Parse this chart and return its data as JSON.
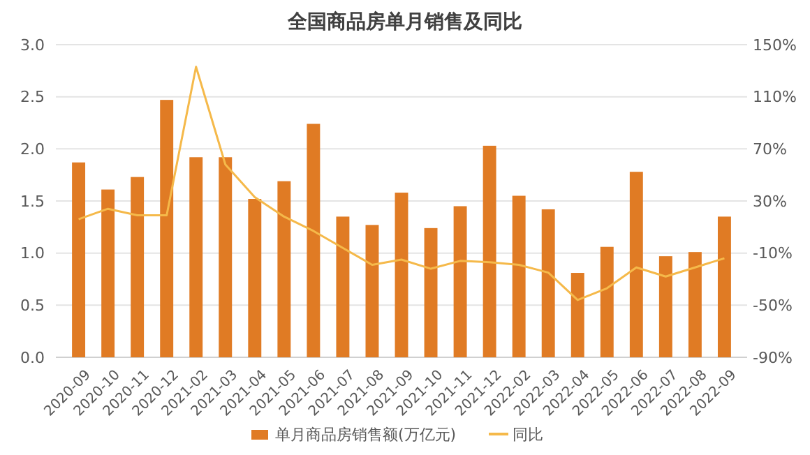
{
  "chart_data": {
    "type": "bar",
    "title": "全国商品房单月销售及同比",
    "categories": [
      "2020-09",
      "2020-10",
      "2020-11",
      "2020-12",
      "2021-02",
      "2021-03",
      "2021-04",
      "2021-05",
      "2021-06",
      "2021-07",
      "2021-08",
      "2021-09",
      "2021-10",
      "2021-11",
      "2021-12",
      "2022-02",
      "2022-03",
      "2022-04",
      "2022-05",
      "2022-06",
      "2022-07",
      "2022-08",
      "2022-09"
    ],
    "series": [
      {
        "name": "单月商品房销售额(万亿元)",
        "color": "#e07b24",
        "values": [
          1.87,
          1.61,
          1.73,
          2.47,
          1.92,
          1.92,
          1.52,
          1.69,
          2.24,
          1.35,
          1.27,
          1.58,
          1.24,
          1.45,
          2.03,
          1.55,
          1.42,
          0.81,
          1.06,
          1.78,
          0.97,
          1.01,
          1.35
        ]
      },
      {
        "name": "同比",
        "type": "line",
        "axis": "y2",
        "color": "#f5b94a",
        "values": [
          16,
          24,
          19,
          19,
          133,
          58,
          33,
          18,
          7,
          -6,
          -19,
          -15,
          -22,
          -16,
          -17,
          -19,
          -25,
          -46,
          -37,
          -21,
          -28,
          -21,
          -14
        ]
      }
    ],
    "ylim": [
      0,
      3
    ],
    "yticks": [
      {
        "value": 0,
        "label": "0.0"
      },
      {
        "value": 0.5,
        "label": "0.5"
      },
      {
        "value": 1,
        "label": "1.0"
      },
      {
        "value": 1.5,
        "label": "1.5"
      },
      {
        "value": 2,
        "label": "2.0"
      },
      {
        "value": 2.5,
        "label": "2.5"
      },
      {
        "value": 3,
        "label": "3.0"
      }
    ],
    "y2lim": [
      -90,
      150
    ],
    "y2ticks": [
      {
        "value": -90,
        "label": "-90%"
      },
      {
        "value": -50,
        "label": "-50%"
      },
      {
        "value": -10,
        "label": "-10%"
      },
      {
        "value": 30,
        "label": "30%"
      },
      {
        "value": 70,
        "label": "70%"
      },
      {
        "value": 110,
        "label": "110%"
      },
      {
        "value": 150,
        "label": "150%"
      }
    ],
    "grid": "y",
    "legend": "bottom",
    "marker": "none"
  }
}
